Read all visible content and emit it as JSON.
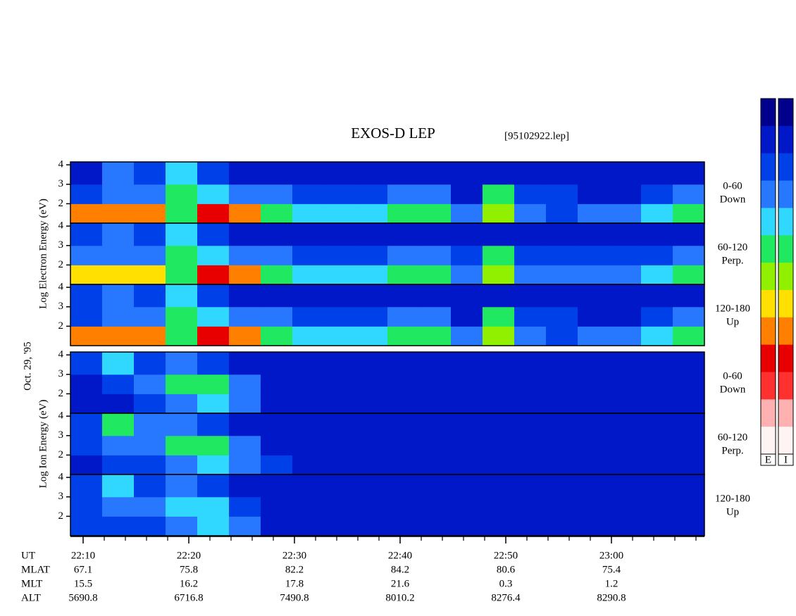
{
  "chart_data": {
    "type": "spectrogram",
    "title": "EXOS-D LEP",
    "file_label": "[95102922.lep]",
    "date_label": "Oct. 29, '95",
    "xlim": [
      8.8,
      68.8
    ],
    "xticks": [
      {
        "value": 10,
        "label": "22:10"
      },
      {
        "value": 20,
        "label": "22:20"
      },
      {
        "value": 30,
        "label": "22:30"
      },
      {
        "value": 40,
        "label": "22:40"
      },
      {
        "value": 50,
        "label": "22:50"
      },
      {
        "value": 60,
        "label": "23:00"
      }
    ],
    "xminorticks": [
      12,
      14,
      16,
      18,
      22,
      24,
      26,
      28,
      32,
      34,
      36,
      38,
      42,
      44,
      46,
      48,
      52,
      54,
      56,
      58,
      62,
      64,
      66,
      68
    ],
    "ylim": [
      1,
      4.15
    ],
    "yticks": [
      2,
      3,
      4
    ],
    "color_scale": [
      "#00008c",
      "#0018c8",
      "#0040e8",
      "#2878ff",
      "#30d8ff",
      "#20e860",
      "#90f000",
      "#ffe000",
      "#ff8000",
      "#e80000",
      "#ff3030",
      "#ffb0b0",
      "#fff4f4"
    ],
    "colorbar_labels": [
      "E",
      "I"
    ],
    "groups": [
      {
        "ylabel": "Log Electron Energy (eV)",
        "panels": [
          {
            "label": [
              "0-60",
              "Down"
            ],
            "z": [
              [
                8,
                8,
                8,
                5,
                9,
                8,
                5,
                4,
                4,
                4,
                5,
                5,
                3,
                6,
                3,
                2,
                3,
                3,
                4,
                5
              ],
              [
                2,
                3,
                3,
                5,
                4,
                3,
                3,
                2,
                2,
                2,
                3,
                3,
                1,
                5,
                2,
                2,
                1,
                1,
                2,
                3
              ],
              [
                1,
                3,
                2,
                4,
                2,
                1,
                1,
                1,
                1,
                1,
                1,
                1,
                1,
                1,
                1,
                1,
                1,
                1,
                1,
                1
              ]
            ]
          },
          {
            "label": [
              "60-120",
              "Perp."
            ],
            "z": [
              [
                7,
                7,
                7,
                5,
                9,
                8,
                5,
                4,
                4,
                4,
                5,
                5,
                3,
                6,
                3,
                3,
                3,
                3,
                4,
                5
              ],
              [
                3,
                3,
                3,
                5,
                4,
                3,
                3,
                2,
                2,
                2,
                3,
                3,
                2,
                5,
                2,
                2,
                2,
                2,
                2,
                3
              ],
              [
                2,
                3,
                2,
                4,
                2,
                1,
                1,
                1,
                1,
                1,
                1,
                1,
                1,
                1,
                1,
                1,
                1,
                1,
                1,
                1
              ]
            ]
          },
          {
            "label": [
              "120-180",
              "Up"
            ],
            "z": [
              [
                8,
                8,
                8,
                5,
                9,
                8,
                5,
                4,
                4,
                4,
                5,
                5,
                3,
                6,
                3,
                2,
                3,
                3,
                4,
                5
              ],
              [
                2,
                3,
                3,
                5,
                4,
                3,
                3,
                2,
                2,
                2,
                3,
                3,
                1,
                5,
                2,
                2,
                1,
                1,
                2,
                3
              ],
              [
                2,
                3,
                2,
                4,
                2,
                1,
                1,
                1,
                1,
                1,
                1,
                1,
                1,
                1,
                1,
                1,
                1,
                1,
                1,
                1
              ]
            ]
          }
        ]
      },
      {
        "ylabel": "Log Ion Energy (eV)",
        "panels": [
          {
            "label": [
              "0-60",
              "Down"
            ],
            "z": [
              [
                1,
                1,
                2,
                3,
                4,
                3,
                1,
                1,
                1,
                1,
                1,
                1,
                1,
                1,
                1,
                1,
                1,
                1,
                1,
                1
              ],
              [
                1,
                2,
                3,
                5,
                5,
                3,
                1,
                1,
                1,
                1,
                1,
                1,
                1,
                1,
                1,
                1,
                1,
                1,
                1,
                1
              ],
              [
                2,
                4,
                2,
                3,
                2,
                1,
                1,
                1,
                1,
                1,
                1,
                1,
                1,
                1,
                1,
                1,
                1,
                1,
                1,
                1
              ]
            ]
          },
          {
            "label": [
              "60-120",
              "Perp."
            ],
            "z": [
              [
                1,
                2,
                2,
                3,
                4,
                3,
                2,
                1,
                1,
                1,
                1,
                1,
                1,
                1,
                1,
                1,
                1,
                1,
                1,
                1
              ],
              [
                2,
                3,
                3,
                5,
                5,
                3,
                1,
                1,
                1,
                1,
                1,
                1,
                1,
                1,
                1,
                1,
                1,
                1,
                1,
                1
              ],
              [
                2,
                5,
                3,
                3,
                2,
                1,
                1,
                1,
                1,
                1,
                1,
                1,
                1,
                1,
                1,
                1,
                1,
                1,
                1,
                1
              ]
            ]
          },
          {
            "label": [
              "120-180",
              "Up"
            ],
            "z": [
              [
                2,
                2,
                2,
                3,
                4,
                3,
                1,
                1,
                1,
                1,
                1,
                1,
                1,
                1,
                1,
                1,
                1,
                1,
                1,
                1
              ],
              [
                2,
                3,
                3,
                4,
                4,
                2,
                1,
                1,
                1,
                1,
                1,
                1,
                1,
                1,
                1,
                1,
                1,
                1,
                1,
                1
              ],
              [
                2,
                4,
                2,
                3,
                2,
                1,
                1,
                1,
                1,
                1,
                1,
                1,
                1,
                1,
                1,
                1,
                1,
                1,
                1,
                1
              ]
            ]
          }
        ]
      }
    ],
    "ut_label": "UT",
    "ephemeris": [
      {
        "name": "MLAT",
        "values": [
          67.1,
          75.8,
          82.2,
          84.2,
          80.6,
          75.4
        ]
      },
      {
        "name": "MLT",
        "values": [
          15.5,
          16.2,
          17.8,
          21.6,
          0.3,
          1.2
        ]
      },
      {
        "name": "ALT",
        "values": [
          5690.8,
          6716.8,
          7490.8,
          8010.2,
          8276.4,
          8290.8
        ]
      }
    ]
  }
}
